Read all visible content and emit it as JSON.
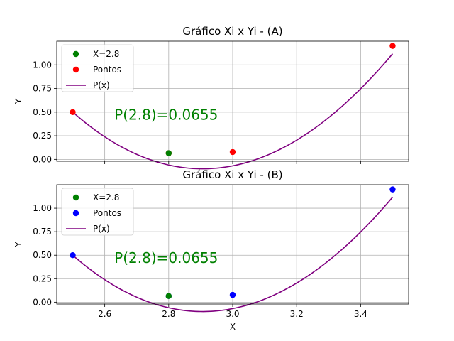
{
  "chart_data": [
    {
      "type": "scatter",
      "title": "Gráfico Xi x Yi - (A)",
      "xlabel": "",
      "ylabel": "Y",
      "xlim": [
        2.45,
        3.55
      ],
      "ylim": [
        -0.02,
        1.25
      ],
      "xticks": [
        "2.6",
        "2.8",
        "3.0",
        "3.2",
        "3.4"
      ],
      "xtick_values": [
        2.6,
        2.8,
        3.0,
        3.2,
        3.4
      ],
      "show_xtick_labels": false,
      "yticks": [
        "0.00",
        "0.25",
        "0.50",
        "0.75",
        "1.00"
      ],
      "ytick_values": [
        0.0,
        0.25,
        0.5,
        0.75,
        1.0
      ],
      "grid": true,
      "legend_position": "top-left",
      "annotation": {
        "text": "P(2.8)=0.0655",
        "x": 2.63,
        "y": 0.42
      },
      "series": [
        {
          "name": "X=2.8",
          "kind": "scatter",
          "color": "#008000",
          "x": [
            2.8
          ],
          "y": [
            0.0655
          ]
        },
        {
          "name": "Pontos",
          "kind": "scatter",
          "color": "#ff0000",
          "x": [
            2.5,
            2.8,
            3.0,
            3.5
          ],
          "y": [
            0.5,
            0.0655,
            0.0775,
            1.2
          ]
        },
        {
          "name": "P(x)",
          "kind": "line",
          "color": "#800080",
          "coeffs": [
            0.5,
            -1.8645,
            3.6395,
            -0.1875
          ]
        }
      ]
    },
    {
      "type": "scatter",
      "title": "Gráfico Xi x Yi - (B)",
      "xlabel": "X",
      "ylabel": "Y",
      "xlim": [
        2.45,
        3.55
      ],
      "ylim": [
        -0.02,
        1.25
      ],
      "xticks": [
        "2.6",
        "2.8",
        "3.0",
        "3.2",
        "3.4"
      ],
      "xtick_values": [
        2.6,
        2.8,
        3.0,
        3.2,
        3.4
      ],
      "show_xtick_labels": true,
      "yticks": [
        "0.00",
        "0.25",
        "0.50",
        "0.75",
        "1.00"
      ],
      "ytick_values": [
        0.0,
        0.25,
        0.5,
        0.75,
        1.0
      ],
      "grid": true,
      "legend_position": "top-left",
      "annotation": {
        "text": "P(2.8)=0.0655",
        "x": 2.63,
        "y": 0.42
      },
      "series": [
        {
          "name": "X=2.8",
          "kind": "scatter",
          "color": "#008000",
          "x": [
            2.8
          ],
          "y": [
            0.0655
          ]
        },
        {
          "name": "Pontos",
          "kind": "scatter",
          "color": "#0000ff",
          "x": [
            2.5,
            2.8,
            3.0,
            3.5
          ],
          "y": [
            0.5,
            0.0655,
            0.0775,
            1.2
          ]
        },
        {
          "name": "P(x)",
          "kind": "line",
          "color": "#800080",
          "coeffs": [
            0.5,
            -1.8645,
            3.6395,
            -0.1875
          ]
        }
      ]
    }
  ]
}
